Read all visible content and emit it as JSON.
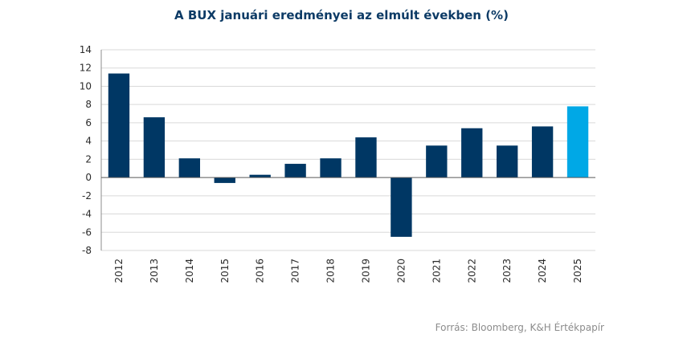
{
  "chart_data": {
    "type": "bar",
    "title": "A BUX januári eredményei az elmúlt években (%)",
    "categories": [
      "2012",
      "2013",
      "2014",
      "2015",
      "2016",
      "2017",
      "2018",
      "2019",
      "2020",
      "2021",
      "2022",
      "2023",
      "2024",
      "2025"
    ],
    "values": [
      11.4,
      6.6,
      2.1,
      -0.6,
      0.3,
      1.5,
      2.1,
      4.4,
      -6.5,
      3.5,
      5.4,
      3.5,
      5.6,
      7.8
    ],
    "colors": [
      "#003764",
      "#003764",
      "#003764",
      "#003764",
      "#003764",
      "#003764",
      "#003764",
      "#003764",
      "#003764",
      "#003764",
      "#003764",
      "#003764",
      "#003764",
      "#00a8e6"
    ],
    "ylim": [
      -8,
      14
    ],
    "yticks": [
      -8,
      -6,
      -4,
      -2,
      0,
      2,
      4,
      6,
      8,
      10,
      12,
      14
    ],
    "xlabel": "",
    "ylabel": "",
    "grid": true,
    "source": "Forrás: Bloomberg, K&H Értékpapír"
  }
}
